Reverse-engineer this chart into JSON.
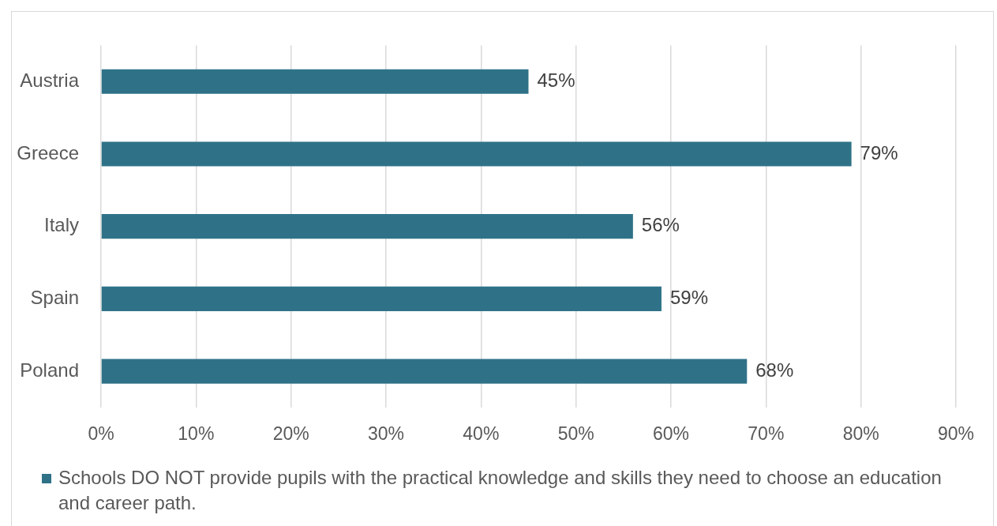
{
  "chart_data": {
    "type": "bar",
    "orientation": "horizontal",
    "categories": [
      "Austria",
      "Greece",
      "Italy",
      "Spain",
      "Poland"
    ],
    "series": [
      {
        "name": "Schools DO NOT provide pupils with the practical knowledge and skills they need to choose an education and career path.",
        "color": "#2f7288",
        "values": [
          45,
          79,
          56,
          59,
          68
        ],
        "value_labels": [
          "45%",
          "79%",
          "56%",
          "59%",
          "68%"
        ]
      }
    ],
    "xlim": [
      0,
      90
    ],
    "xticks": [
      {
        "value": 0,
        "label": "0%"
      },
      {
        "value": 10,
        "label": "10%"
      },
      {
        "value": 20,
        "label": "20%"
      },
      {
        "value": 30,
        "label": "30%"
      },
      {
        "value": 40,
        "label": "40%"
      },
      {
        "value": 50,
        "label": "50%"
      },
      {
        "value": 60,
        "label": "60%"
      },
      {
        "value": 70,
        "label": "70%"
      },
      {
        "value": 80,
        "label": "80%"
      },
      {
        "value": 90,
        "label": "90%"
      }
    ],
    "grid": "x",
    "legend": "bottom"
  }
}
